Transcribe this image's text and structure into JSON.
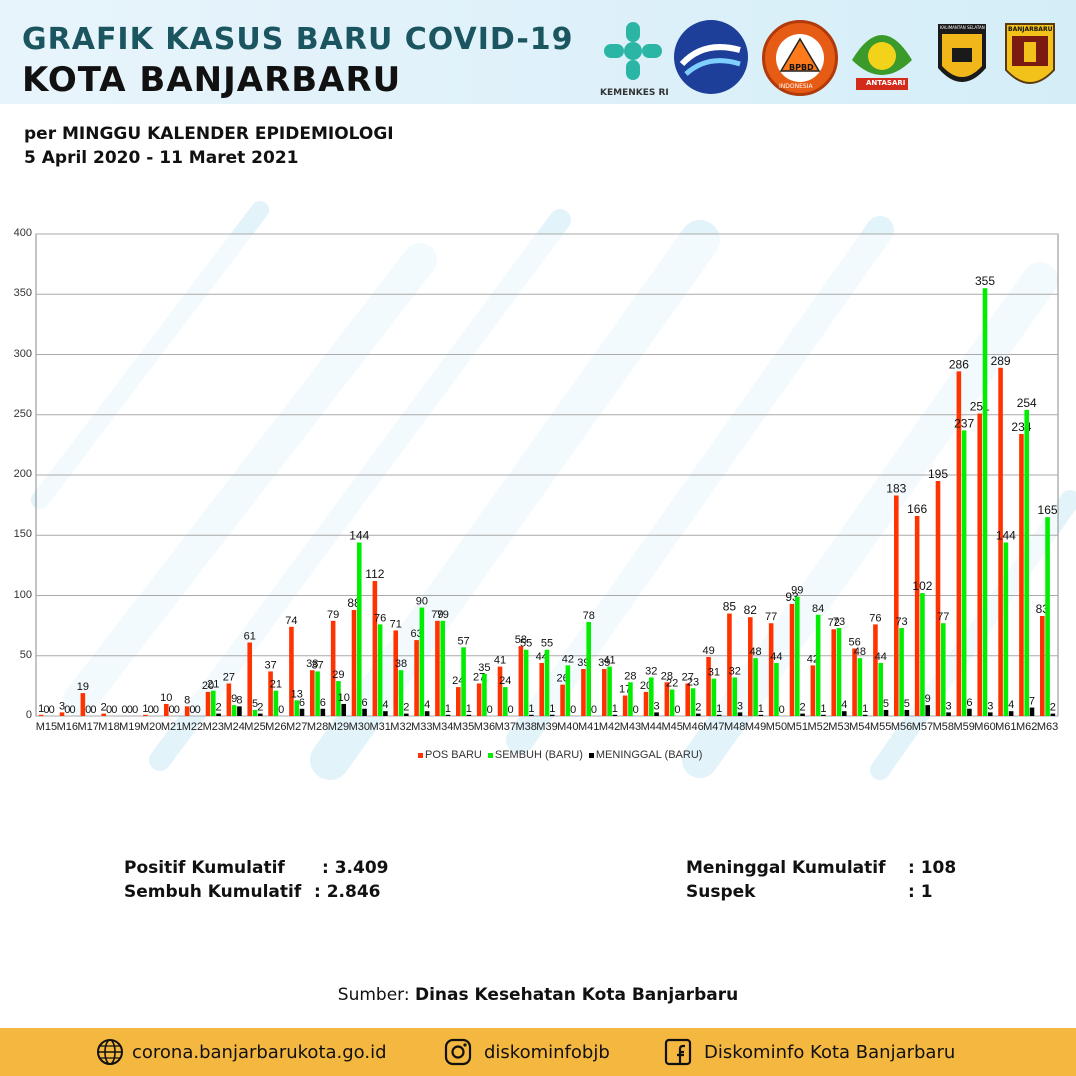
{
  "header": {
    "title_line1": "GRAFIK KASUS BARU COVID-19",
    "title_line2": "KOTA BANJARBARU",
    "subtitle_line1": "per MINGGU KALENDER EPIDEMIOLOGI",
    "subtitle_line2": "5 April 2020 - 11 Maret 2021"
  },
  "logos": {
    "kemenkes_label": "KEMENKES RI",
    "bpbd_label": "BPBD",
    "bpbd_ring": "INDONESIA",
    "antasari_label": "ANTASARI",
    "police_label": "KALIMANTAN SELATAN",
    "banjarbaru_label": "BANJARBARU"
  },
  "chart_data": {
    "type": "bar",
    "categories": [
      "M15",
      "M16",
      "M17",
      "M18",
      "M19",
      "M20",
      "M21",
      "M22",
      "M23",
      "M24",
      "M25",
      "M26",
      "M27",
      "M28",
      "M29",
      "M30",
      "M31",
      "M32",
      "M33",
      "M34",
      "M35",
      "M36",
      "M37",
      "M38",
      "M39",
      "M40",
      "M41",
      "M42",
      "M43",
      "M44",
      "M45",
      "M46",
      "M47",
      "M48",
      "M49",
      "M50",
      "M51",
      "M52",
      "M53",
      "M54",
      "M55",
      "M56",
      "M57",
      "M58",
      "M59",
      "M60",
      "M61",
      "M62",
      "M63"
    ],
    "series": [
      {
        "name": "POS BARU",
        "color": "#ff3300",
        "values": [
          1,
          3,
          19,
          2,
          0,
          1,
          10,
          8,
          20,
          27,
          61,
          37,
          74,
          38,
          79,
          88,
          112,
          71,
          63,
          79,
          24,
          27,
          41,
          58,
          44,
          26,
          39,
          39,
          17,
          20,
          28,
          27,
          49,
          85,
          82,
          77,
          93,
          42,
          72,
          56,
          76,
          183,
          166,
          195,
          286,
          251,
          289,
          234,
          83
        ]
      },
      {
        "name": "SEMBUH (BARU)",
        "color": "#00ee00",
        "values": [
          0,
          0,
          0,
          0,
          0,
          0,
          0,
          0,
          21,
          9,
          5,
          21,
          13,
          37,
          29,
          144,
          76,
          38,
          90,
          79,
          57,
          35,
          24,
          55,
          55,
          42,
          78,
          41,
          28,
          32,
          22,
          23,
          31,
          32,
          48,
          44,
          99,
          84,
          73,
          48,
          44,
          73,
          102,
          77,
          237,
          355,
          144,
          254,
          165
        ]
      },
      {
        "name": "MENINGGAL (BARU)",
        "color": "#000000",
        "values": [
          0,
          0,
          0,
          0,
          0,
          0,
          0,
          0,
          2,
          8,
          2,
          0,
          6,
          6,
          10,
          6,
          4,
          2,
          4,
          1,
          1,
          0,
          0,
          1,
          1,
          0,
          0,
          1,
          0,
          3,
          0,
          2,
          1,
          3,
          1,
          0,
          2,
          1,
          4,
          1,
          5,
          5,
          9,
          3,
          6,
          3,
          4,
          7,
          2
        ]
      }
    ],
    "ylim": [
      0,
      400
    ],
    "yticks": [
      0,
      50,
      100,
      150,
      200,
      250,
      300,
      350,
      400
    ],
    "grid": true,
    "legend_position": "bottom"
  },
  "stats": {
    "positif_label": "Positif Kumulatif",
    "positif_value": ": 3.409",
    "sembuh_label": "Sembuh Kumulatif",
    "sembuh_value": ": 2.846",
    "meninggal_label": "Meninggal Kumulatif",
    "meninggal_value": ":  108",
    "suspek_label": "Suspek",
    "suspek_value": ":  1"
  },
  "source": {
    "prefix": "Sumber: ",
    "name": "Dinas Kesehatan Kota Banjarbaru"
  },
  "footer": {
    "website": "corona.banjarbarukota.go.id",
    "instagram": "diskominfobjb",
    "facebook": "Diskominfo Kota Banjarbaru"
  }
}
